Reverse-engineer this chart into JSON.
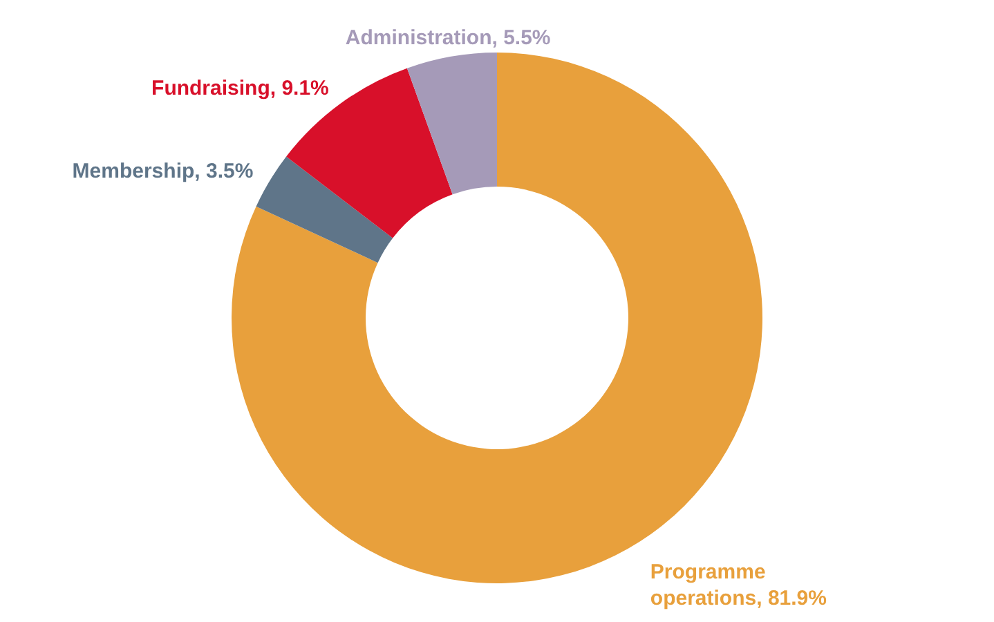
{
  "chart_data": {
    "type": "donut",
    "categories": [
      "Programme operations",
      "Membership",
      "Fundraising",
      "Administration"
    ],
    "values": [
      81.9,
      3.5,
      9.1,
      5.5
    ],
    "colors": [
      "#e8a03c",
      "#5f7589",
      "#d8102a",
      "#a59ab8"
    ],
    "value_labels": [
      "81.9%",
      "3.5%",
      "9.1%",
      "5.5%"
    ]
  }
}
